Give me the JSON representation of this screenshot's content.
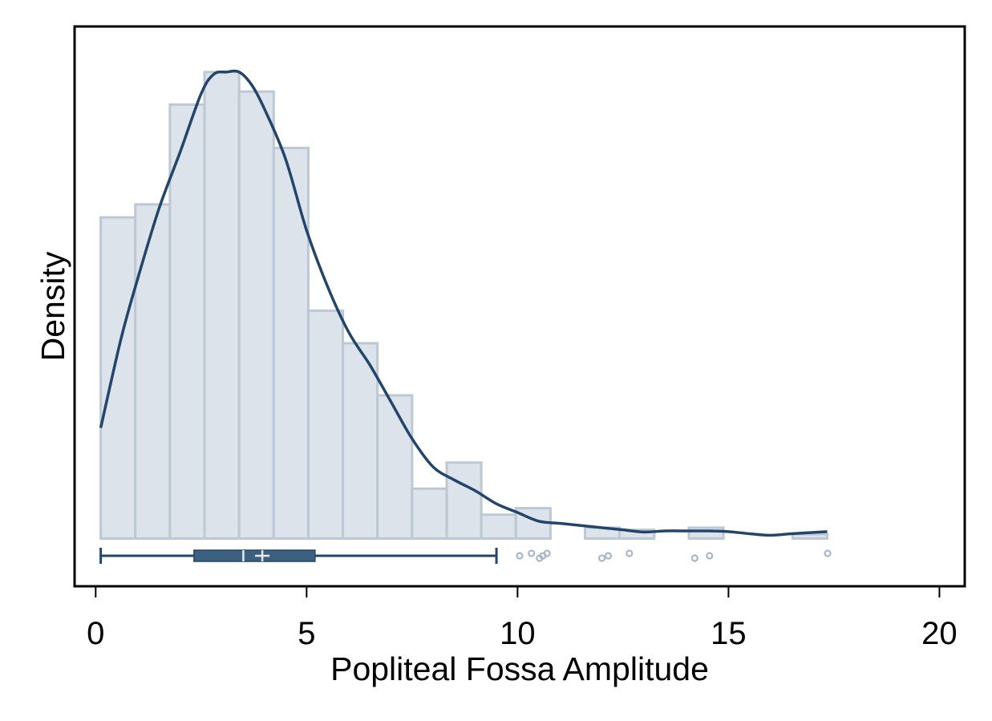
{
  "chart_data": {
    "type": "histogram",
    "xlabel": "Popliteal Fossa Amplitude",
    "ylabel": "Density",
    "xlim": [
      -0.5,
      20.6
    ],
    "x_ticks": [
      0,
      5,
      10,
      15,
      20
    ],
    "x_tick_labels": [
      "0",
      "5",
      "10",
      "15",
      "20"
    ],
    "y_ticks_shown": false,
    "grid": false,
    "colors": {
      "bar_fill": "#dde3eb",
      "bar_edge": "#bcc8d4",
      "density_line": "#24456a",
      "box": "#3d5f80",
      "outlier": "#a9b7c6",
      "frame": "#000000"
    },
    "histogram": {
      "bin_edges": [
        0.12,
        0.94,
        1.76,
        2.58,
        3.4,
        4.22,
        5.04,
        5.86,
        6.68,
        7.5,
        8.32,
        9.14,
        9.96,
        10.78,
        11.6,
        12.42,
        13.24,
        14.06,
        14.88,
        15.7,
        16.52,
        17.34
      ],
      "density": [
        0.148,
        0.154,
        0.2,
        0.215,
        0.206,
        0.18,
        0.105,
        0.09,
        0.066,
        0.023,
        0.035,
        0.011,
        0.014,
        0,
        0.005,
        0.004,
        0,
        0.005,
        0,
        0,
        0.002
      ]
    },
    "density_curve": {
      "x": [
        0.12,
        0.6,
        1.0,
        1.5,
        2.0,
        2.5,
        2.8,
        3.1,
        3.4,
        3.7,
        4.0,
        4.5,
        5.0,
        5.5,
        6.0,
        6.5,
        7.0,
        7.5,
        8.0,
        8.5,
        9.0,
        9.5,
        10.0,
        10.5,
        11.0,
        11.5,
        12.0,
        12.5,
        13.0,
        13.5,
        14.0,
        14.5,
        15.0,
        15.5,
        16.0,
        16.5,
        17.34
      ],
      "y": [
        0.051,
        0.092,
        0.12,
        0.152,
        0.178,
        0.205,
        0.214,
        0.215,
        0.215,
        0.209,
        0.198,
        0.175,
        0.142,
        0.116,
        0.095,
        0.08,
        0.063,
        0.046,
        0.033,
        0.027,
        0.022,
        0.016,
        0.012,
        0.008,
        0.007,
        0.006,
        0.005,
        0.004,
        0.003,
        0.0035,
        0.0035,
        0.0035,
        0.0032,
        0.0022,
        0.0015,
        0.0022,
        0.0032
      ]
    },
    "ylim": [
      -0.022,
      0.236
    ],
    "boxplot": {
      "whisker_low": 0.12,
      "q1": 2.33,
      "median": 3.5,
      "mean": 3.95,
      "q3": 5.2,
      "whisker_high": 9.5,
      "outliers": [
        10.05,
        10.33,
        10.52,
        10.6,
        10.7,
        12.0,
        12.15,
        12.65,
        14.2,
        14.55,
        17.35
      ]
    }
  }
}
